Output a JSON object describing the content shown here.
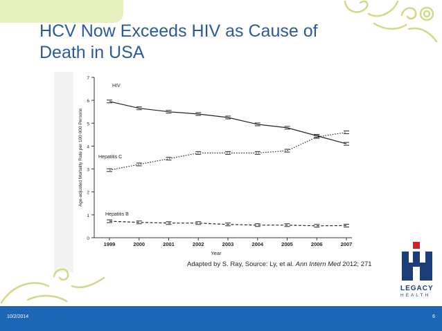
{
  "slide": {
    "title": "HCV Now Exceeds HIV as Cause of Death in USA",
    "caption_prefix": "Adapted by S. Ray, Source: Ly, et al. ",
    "caption_journal": "Ann Intern Med",
    "caption_suffix": " 2012; 271",
    "date": "10/2/2014",
    "page_number": "6"
  },
  "logo": {
    "name_line1": "LEGACY",
    "name_line2": "HEALTH",
    "colors": {
      "primary": "#1c3e78",
      "accent": "#cc2229"
    }
  },
  "theme": {
    "title_color": "#2a5a9e",
    "footer_color": "#1d65b5",
    "band_color": "#e6efbe",
    "swirl_color": "#c9dc86"
  },
  "chart_data": {
    "type": "line",
    "title": "",
    "xlabel": "Year",
    "ylabel": "Age-adjusted Mortality Rate per 100 000 Persons",
    "x": [
      1999,
      2000,
      2001,
      2002,
      2003,
      2004,
      2005,
      2006,
      2007
    ],
    "ylim": [
      0,
      7
    ],
    "yticks": [
      0,
      1,
      2,
      3,
      4,
      5,
      6,
      7
    ],
    "grid": false,
    "legend": "inline labels",
    "series": [
      {
        "name": "HIV",
        "style": "solid",
        "values": [
          5.95,
          5.65,
          5.5,
          5.4,
          5.25,
          4.95,
          4.8,
          4.45,
          4.1
        ]
      },
      {
        "name": "Hepatitis C",
        "style": "dotted",
        "values": [
          2.95,
          3.2,
          3.45,
          3.7,
          3.7,
          3.7,
          3.8,
          4.4,
          4.6
        ]
      },
      {
        "name": "Hepatitis B",
        "style": "dashed",
        "values": [
          0.72,
          0.67,
          0.64,
          0.64,
          0.58,
          0.55,
          0.55,
          0.52,
          0.53
        ]
      }
    ]
  }
}
